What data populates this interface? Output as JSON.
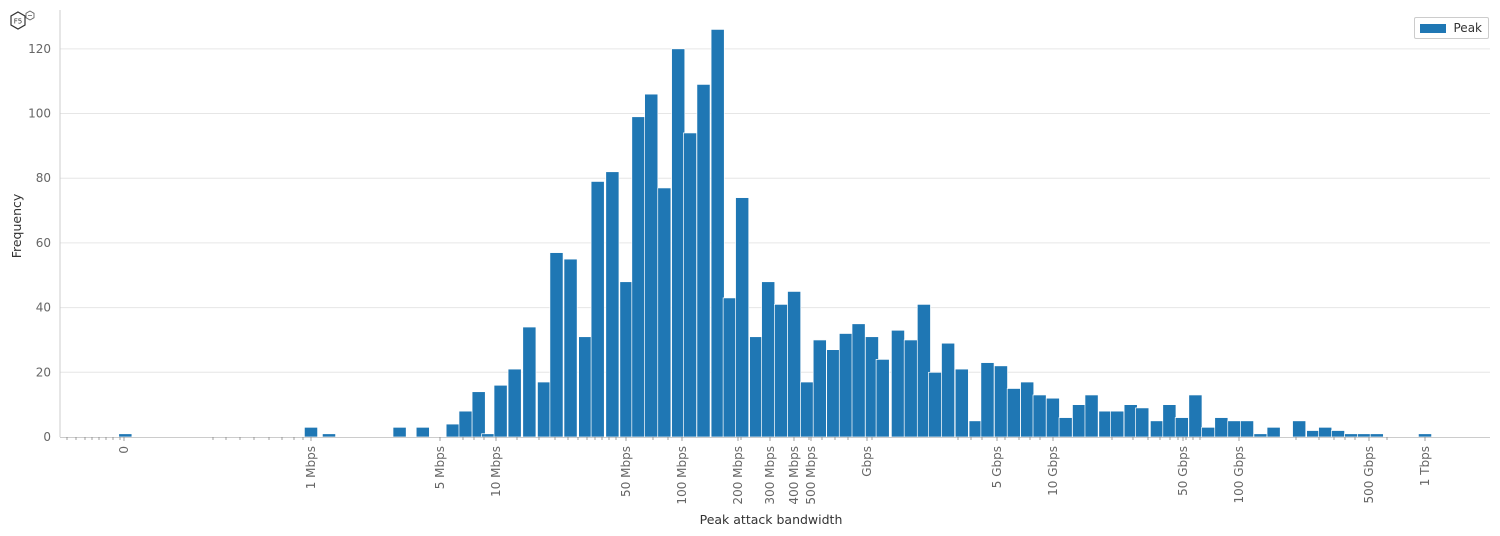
{
  "logo": {
    "text": "F5"
  },
  "colors": {
    "bar": "#1f77b4",
    "grid": "#e6e6e6",
    "axis": "#cccccc",
    "edge": "#ffffff"
  },
  "chart_data": {
    "type": "bar",
    "title": "",
    "xlabel": "Peak attack bandwidth",
    "ylabel": "Frequency",
    "ylim": [
      0,
      132
    ],
    "yticks": [
      0,
      20,
      40,
      60,
      80,
      100,
      120
    ],
    "x_scale": "log",
    "grid": "horizontal",
    "legend": {
      "position": "top-right",
      "entries": [
        "Peak"
      ]
    },
    "x_tick_labels": [
      "0",
      "1 Mbps",
      "5 Mbps",
      "10 Mbps",
      "50 Mbps",
      "100 Mbps",
      "200 Mbps",
      "300 Mbps",
      "400 Mbps",
      "500 Mbps",
      "Gbps",
      "5 Gbps",
      "10 Gbps",
      "50 Gbps",
      "100 Gbps",
      "500 Gbps",
      "1 Tbps"
    ],
    "series": [
      {
        "name": "Peak",
        "bins": [
          {
            "x": "100 kbps",
            "value": 1
          },
          {
            "x": "1 Mbps",
            "value": 3
          },
          {
            "x": "1.25 Mbps",
            "value": 1
          },
          {
            "x": "3 Mbps",
            "value": 3
          },
          {
            "x": "4 Mbps",
            "value": 3
          },
          {
            "x": "5.8 Mbps",
            "value": 4
          },
          {
            "x": "6.8 Mbps",
            "value": 8
          },
          {
            "x": "8 Mbps",
            "value": 14
          },
          {
            "x": "9 Mbps",
            "value": 1
          },
          {
            "x": "10.5 Mbps",
            "value": 16
          },
          {
            "x": "12.5 Mbps",
            "value": 21
          },
          {
            "x": "15 Mbps",
            "value": 34
          },
          {
            "x": "18 Mbps",
            "value": 17
          },
          {
            "x": "21 Mbps",
            "value": 57
          },
          {
            "x": "25 Mbps",
            "value": 55
          },
          {
            "x": "30 Mbps",
            "value": 31
          },
          {
            "x": "35 Mbps",
            "value": 79
          },
          {
            "x": "42 Mbps",
            "value": 82
          },
          {
            "x": "50 Mbps",
            "value": 48
          },
          {
            "x": "58 Mbps",
            "value": 99
          },
          {
            "x": "68 Mbps",
            "value": 106
          },
          {
            "x": "80 Mbps",
            "value": 77
          },
          {
            "x": "95 Mbps",
            "value": 120
          },
          {
            "x": "110 Mbps",
            "value": 94
          },
          {
            "x": "130 Mbps",
            "value": 109
          },
          {
            "x": "155 Mbps",
            "value": 126
          },
          {
            "x": "180 Mbps",
            "value": 43
          },
          {
            "x": "210 Mbps",
            "value": 74
          },
          {
            "x": "250 Mbps",
            "value": 31
          },
          {
            "x": "290 Mbps",
            "value": 48
          },
          {
            "x": "340 Mbps",
            "value": 41
          },
          {
            "x": "400 Mbps",
            "value": 45
          },
          {
            "x": "470 Mbps",
            "value": 17
          },
          {
            "x": "550 Mbps",
            "value": 30
          },
          {
            "x": "650 Mbps",
            "value": 27
          },
          {
            "x": "760 Mbps",
            "value": 32
          },
          {
            "x": "890 Mbps",
            "value": 35
          },
          {
            "x": "1.05 Gbps",
            "value": 31
          },
          {
            "x": "1.2 Gbps",
            "value": 24
          },
          {
            "x": "1.45 Gbps",
            "value": 33
          },
          {
            "x": "1.7 Gbps",
            "value": 30
          },
          {
            "x": "2 Gbps",
            "value": 41
          },
          {
            "x": "2.3 Gbps",
            "value": 20
          },
          {
            "x": "2.7 Gbps",
            "value": 29
          },
          {
            "x": "3.2 Gbps",
            "value": 21
          },
          {
            "x": "3.8 Gbps",
            "value": 5
          },
          {
            "x": "4.4 Gbps",
            "value": 23
          },
          {
            "x": "5.2 Gbps",
            "value": 22
          },
          {
            "x": "6.1 Gbps",
            "value": 15
          },
          {
            "x": "7.2 Gbps",
            "value": 17
          },
          {
            "x": "8.4 Gbps",
            "value": 13
          },
          {
            "x": "9.9 Gbps",
            "value": 12
          },
          {
            "x": "11.6 Gbps",
            "value": 6
          },
          {
            "x": "13.7 Gbps",
            "value": 10
          },
          {
            "x": "16 Gbps",
            "value": 13
          },
          {
            "x": "19 Gbps",
            "value": 8
          },
          {
            "x": "22 Gbps",
            "value": 8
          },
          {
            "x": "26 Gbps",
            "value": 10
          },
          {
            "x": "30 Gbps",
            "value": 9
          },
          {
            "x": "36 Gbps",
            "value": 5
          },
          {
            "x": "42 Gbps",
            "value": 10
          },
          {
            "x": "49 Gbps",
            "value": 6
          },
          {
            "x": "58 Gbps",
            "value": 13
          },
          {
            "x": "68 Gbps",
            "value": 3
          },
          {
            "x": "80 Gbps",
            "value": 6
          },
          {
            "x": "94 Gbps",
            "value": 5
          },
          {
            "x": "110 Gbps",
            "value": 5
          },
          {
            "x": "130 Gbps",
            "value": 1
          },
          {
            "x": "153 Gbps",
            "value": 3
          },
          {
            "x": "210 Gbps",
            "value": 5
          },
          {
            "x": "250 Gbps",
            "value": 2
          },
          {
            "x": "290 Gbps",
            "value": 3
          },
          {
            "x": "340 Gbps",
            "value": 2
          },
          {
            "x": "400 Gbps",
            "value": 1
          },
          {
            "x": "470 Gbps",
            "value": 1
          },
          {
            "x": "550 Gbps",
            "value": 1
          },
          {
            "x": "1 Tbps",
            "value": 1
          }
        ]
      }
    ]
  }
}
